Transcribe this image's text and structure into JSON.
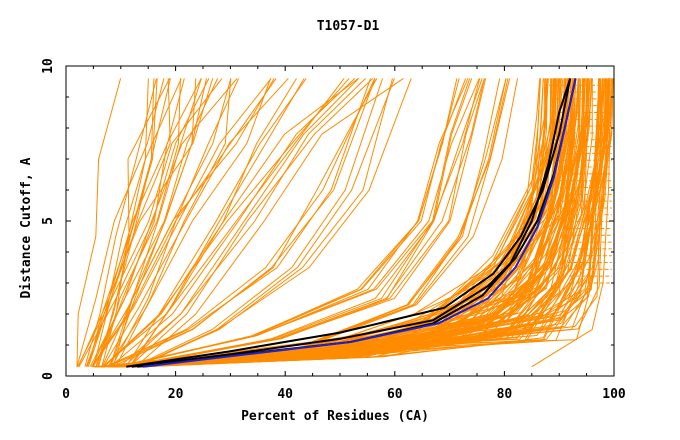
{
  "chart_data": {
    "type": "line",
    "title": "T1057-D1",
    "xlabel": "Percent of Residues (CA)",
    "ylabel": "Distance Cutoff, A",
    "xlim": [
      0,
      100
    ],
    "ylim": [
      0,
      10
    ],
    "xticks": [
      "0",
      "20",
      "40",
      "60",
      "80",
      "100"
    ],
    "yticks": [
      "0",
      "5",
      "10"
    ],
    "grid": false,
    "colors": {
      "others": "#ff8c00",
      "highlight_black": "#000000",
      "highlight_blue": "#1f1fcc"
    },
    "series_generator": "Curves shown approximate many GDT plot models; key highlighted models listed explicitly.",
    "highlight_series": [
      {
        "color": "black",
        "points": [
          [
            12,
            0.3
          ],
          [
            30,
            0.7
          ],
          [
            50,
            1.2
          ],
          [
            67,
            1.8
          ],
          [
            77,
            2.9
          ],
          [
            82,
            3.8
          ],
          [
            86,
            5.0
          ],
          [
            89,
            6.5
          ],
          [
            91,
            8.0
          ],
          [
            93,
            9.6
          ]
        ]
      },
      {
        "color": "black",
        "points": [
          [
            11,
            0.3
          ],
          [
            30,
            0.8
          ],
          [
            50,
            1.4
          ],
          [
            69,
            2.2
          ],
          [
            78,
            3.3
          ],
          [
            83,
            4.5
          ],
          [
            87,
            6.0
          ],
          [
            90,
            7.8
          ],
          [
            92,
            9.6
          ]
        ]
      },
      {
        "color": "black",
        "points": [
          [
            13,
            0.3
          ],
          [
            32,
            0.7
          ],
          [
            52,
            1.1
          ],
          [
            67,
            1.7
          ],
          [
            76,
            2.6
          ],
          [
            81,
            3.6
          ],
          [
            85,
            5.0
          ],
          [
            88,
            6.8
          ],
          [
            90,
            8.5
          ],
          [
            92,
            9.6
          ]
        ]
      },
      {
        "color": "blue",
        "points": [
          [
            14,
            0.3
          ],
          [
            33,
            0.7
          ],
          [
            52,
            1.1
          ],
          [
            68,
            1.7
          ],
          [
            77,
            2.5
          ],
          [
            82,
            3.5
          ],
          [
            86,
            4.8
          ],
          [
            89,
            6.4
          ],
          [
            91,
            8.0
          ],
          [
            93,
            9.6
          ]
        ]
      }
    ],
    "orange_envelope": {
      "right_edge": [
        [
          85,
          0.3
        ],
        [
          96,
          1.5
        ],
        [
          98,
          3.0
        ],
        [
          99,
          6.0
        ],
        [
          99.5,
          9.6
        ]
      ],
      "left_steep_groups": [
        [
          [
            3,
            0.3
          ],
          [
            6,
            2.0
          ],
          [
            9,
            4.5
          ],
          [
            12,
            7.0
          ],
          [
            16,
            9.6
          ]
        ],
        [
          [
            5,
            0.3
          ],
          [
            9,
            2.5
          ],
          [
            14,
            5.0
          ],
          [
            19,
            7.5
          ],
          [
            22,
            9.6
          ]
        ],
        [
          [
            6,
            0.3
          ],
          [
            12,
            2.5
          ],
          [
            18,
            5.0
          ],
          [
            25,
            7.5
          ],
          [
            30,
            9.6
          ]
        ],
        [
          [
            8,
            0.3
          ],
          [
            15,
            2.2
          ],
          [
            24,
            5.0
          ],
          [
            32,
            7.5
          ],
          [
            39,
            9.6
          ]
        ],
        [
          [
            9,
            0.3
          ],
          [
            20,
            2.0
          ],
          [
            32,
            5.0
          ],
          [
            44,
            7.8
          ],
          [
            55,
            9.6
          ]
        ],
        [
          [
            10,
            0.3
          ],
          [
            25,
            1.5
          ],
          [
            40,
            3.5
          ],
          [
            50,
            6.0
          ],
          [
            57,
            9.6
          ]
        ]
      ],
      "middle_group": [
        [
          [
            10,
            0.3
          ],
          [
            35,
            1.3
          ],
          [
            55,
            2.8
          ],
          [
            65,
            5.0
          ],
          [
            70,
            7.5
          ],
          [
            74,
            9.6
          ]
        ],
        [
          [
            11,
            0.3
          ],
          [
            38,
            1.2
          ],
          [
            58,
            2.5
          ],
          [
            68,
            5.0
          ],
          [
            72,
            7.8
          ],
          [
            75,
            9.6
          ]
        ],
        [
          [
            10,
            0.3
          ],
          [
            45,
            1.1
          ],
          [
            63,
            2.3
          ],
          [
            73,
            4.5
          ],
          [
            78,
            7.0
          ],
          [
            81,
            9.6
          ]
        ]
      ]
    }
  }
}
